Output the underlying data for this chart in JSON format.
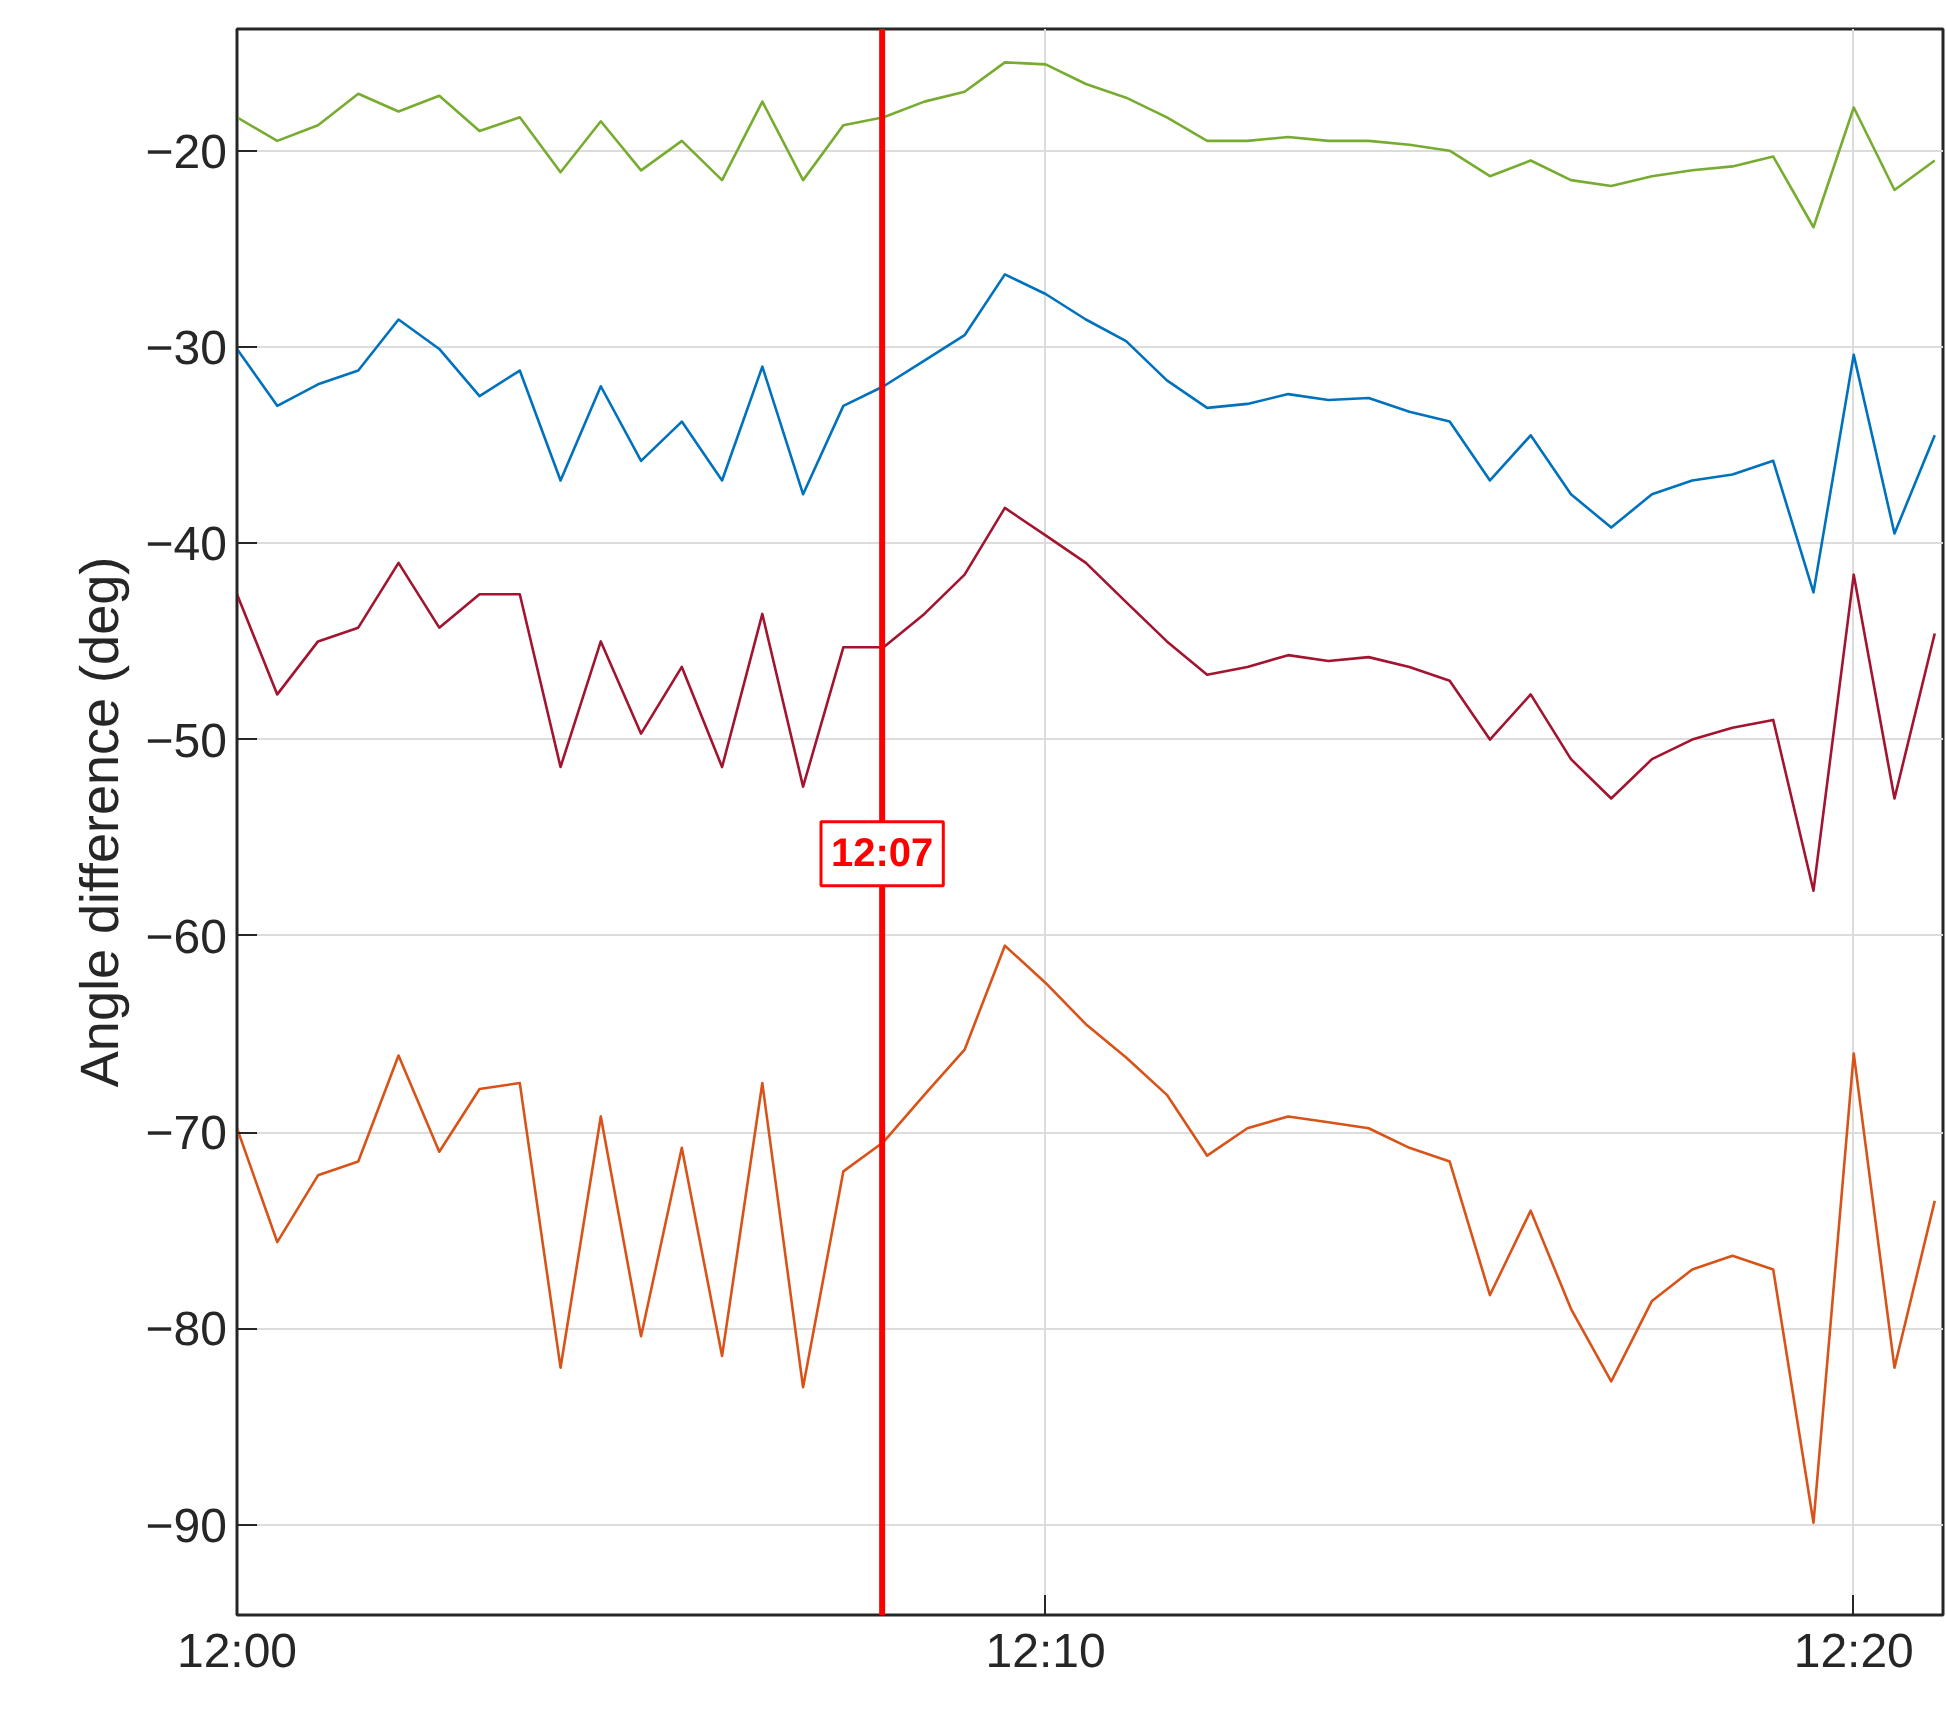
{
  "chart_data": {
    "type": "line",
    "ylabel": "Angle difference (deg)",
    "x": [
      12,
      12.0083,
      12.0167,
      12.025,
      12.0333,
      12.0417,
      12.05,
      12.0583,
      12.0667,
      12.075,
      12.0833,
      12.0917,
      12.1,
      12.1083,
      12.1167,
      12.125,
      12.1333,
      12.1417,
      12.15,
      12.1583,
      12.1667,
      12.175,
      12.1833,
      12.1917,
      12.2,
      12.2083,
      12.2167,
      12.225,
      12.2333,
      12.2417,
      12.25,
      12.2583,
      12.2667,
      12.275,
      12.2833,
      12.2917,
      12.3,
      12.3083,
      12.3167,
      12.325,
      12.3333,
      12.3417,
      12.35
    ],
    "series": [
      {
        "color": "#77ac30",
        "values": [
          -18.3,
          -19.5,
          -18.7,
          -17.1,
          -18,
          -17.2,
          -19,
          -18.3,
          -21.1,
          -18.5,
          -21,
          -19.5,
          -21.5,
          -17.5,
          -21.5,
          -18.7,
          -18.3,
          -17.5,
          -17,
          -15.5,
          -15.6,
          -16.6,
          -17.3,
          -18.3,
          -19.5,
          -19.5,
          -19.3,
          -19.5,
          -19.5,
          -19.7,
          -20,
          -21.3,
          -20.5,
          -21.5,
          -21.8,
          -21.3,
          -21,
          -20.8,
          -20.3,
          -23.9,
          -17.8,
          -22,
          -20.5
        ]
      },
      {
        "color": "#0072bd",
        "values": [
          -30.1,
          -33,
          -31.9,
          -31.2,
          -28.6,
          -30.1,
          -32.5,
          -31.2,
          -36.8,
          -32,
          -35.8,
          -33.8,
          -36.8,
          -31,
          -37.5,
          -33,
          -32,
          -30.7,
          -29.4,
          -26.3,
          -27.3,
          -28.6,
          -29.7,
          -31.7,
          -33.1,
          -32.9,
          -32.4,
          -32.7,
          -32.6,
          -33.3,
          -33.8,
          -36.8,
          -34.5,
          -37.5,
          -39.2,
          -37.5,
          -36.8,
          -36.5,
          -35.8,
          -42.5,
          -30.4,
          -39.5,
          -34.5
        ]
      },
      {
        "color": "#a2142f",
        "values": [
          -42.6,
          -47.7,
          -45,
          -44.3,
          -41,
          -44.3,
          -42.6,
          -42.6,
          -51.4,
          -45,
          -49.7,
          -46.3,
          -51.4,
          -43.6,
          -52.4,
          -45.3,
          -45.3,
          -43.6,
          -41.6,
          -38.2,
          -39.6,
          -41,
          -43,
          -45,
          -46.7,
          -46.3,
          -45.7,
          -46,
          -45.8,
          -46.3,
          -47,
          -50,
          -47.7,
          -51,
          -53,
          -51,
          -50,
          -49.4,
          -49,
          -57.7,
          -41.6,
          -53,
          -44.6
        ]
      },
      {
        "color": "#d95319",
        "values": [
          -69.8,
          -75.6,
          -72.2,
          -71.5,
          -66.1,
          -71,
          -67.8,
          -67.5,
          -82,
          -69.2,
          -80.4,
          -70.8,
          -81.4,
          -67.5,
          -83,
          -72,
          -70.5,
          -68.1,
          -65.8,
          -60.5,
          -62.4,
          -64.5,
          -66.2,
          -68.1,
          -71.2,
          -69.8,
          -69.2,
          -69.5,
          -69.8,
          -70.8,
          -71.5,
          -78.3,
          -74,
          -79,
          -82.7,
          -78.6,
          -77,
          -76.3,
          -77,
          -89.9,
          -66,
          -82,
          -73.5
        ]
      }
    ],
    "xlim": [
      12,
      12.3517
    ],
    "xticks": [
      {
        "value": 12,
        "label": "12:00"
      },
      {
        "value": 12.1667,
        "label": "12:10"
      },
      {
        "value": 12.3333,
        "label": "12:20"
      }
    ],
    "ylim": [
      -94.6,
      -13.8
    ],
    "yticks": [
      -90,
      -80,
      -70,
      -60,
      -50,
      -40,
      -30,
      -20
    ],
    "ref_lines": [
      {
        "axis": "x",
        "value": 12.133,
        "label": "12:07",
        "color": "#ff0000"
      }
    ],
    "grid": true,
    "marker": "none",
    "line_style": "solid"
  }
}
